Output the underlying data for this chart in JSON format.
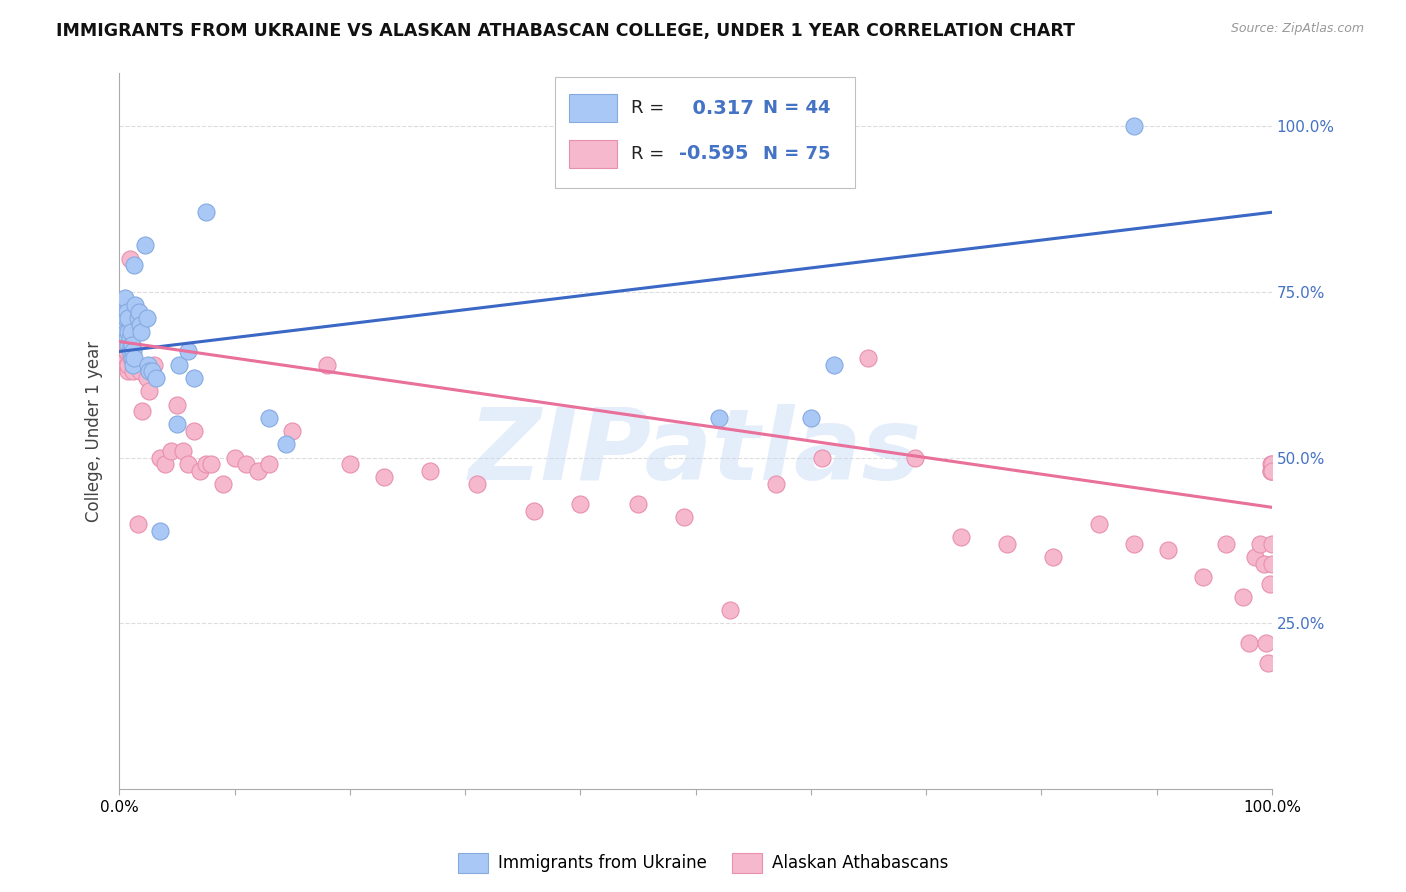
{
  "title": "IMMIGRANTS FROM UKRAINE VS ALASKAN ATHABASCAN COLLEGE, UNDER 1 YEAR CORRELATION CHART",
  "source": "Source: ZipAtlas.com",
  "ylabel": "College, Under 1 year",
  "xlim": [
    0,
    1
  ],
  "ylim": [
    0,
    1.08
  ],
  "y_tick_labels": [
    "25.0%",
    "50.0%",
    "75.0%",
    "100.0%"
  ],
  "y_tick_positions": [
    0.25,
    0.5,
    0.75,
    1.0
  ],
  "ukraine_color": "#aac8f5",
  "ukraine_edge": "#85aae0",
  "ukraine_line_color": "#3a68c4",
  "athabascan_color": "#f5b8cc",
  "athabascan_edge": "#e890b0",
  "athabascan_line_color": "#e8709a",
  "legend_R_ukraine": "0.317",
  "legend_N_ukraine": "44",
  "legend_R_athabascan": "-0.595",
  "legend_N_athabascan": "75",
  "ukraine_scatter_x": [
    0.004,
    0.005,
    0.005,
    0.005,
    0.006,
    0.006,
    0.007,
    0.007,
    0.008,
    0.008,
    0.008,
    0.009,
    0.009,
    0.01,
    0.01,
    0.011,
    0.011,
    0.012,
    0.012,
    0.013,
    0.013,
    0.014,
    0.016,
    0.017,
    0.018,
    0.019,
    0.022,
    0.024,
    0.025,
    0.026,
    0.028,
    0.032,
    0.035,
    0.05,
    0.052,
    0.06,
    0.065,
    0.075,
    0.13,
    0.145,
    0.52,
    0.6,
    0.62,
    0.88
  ],
  "ukraine_scatter_y": [
    0.73,
    0.7,
    0.72,
    0.74,
    0.69,
    0.71,
    0.68,
    0.72,
    0.67,
    0.69,
    0.71,
    0.66,
    0.68,
    0.67,
    0.69,
    0.65,
    0.67,
    0.64,
    0.66,
    0.65,
    0.79,
    0.73,
    0.71,
    0.72,
    0.7,
    0.69,
    0.82,
    0.71,
    0.64,
    0.63,
    0.63,
    0.62,
    0.39,
    0.55,
    0.64,
    0.66,
    0.62,
    0.87,
    0.56,
    0.52,
    0.56,
    0.56,
    0.64,
    1.0
  ],
  "athabascan_scatter_x": [
    0.003,
    0.004,
    0.005,
    0.005,
    0.006,
    0.006,
    0.007,
    0.007,
    0.008,
    0.008,
    0.009,
    0.01,
    0.01,
    0.011,
    0.012,
    0.014,
    0.016,
    0.018,
    0.02,
    0.024,
    0.026,
    0.03,
    0.035,
    0.04,
    0.045,
    0.05,
    0.055,
    0.06,
    0.065,
    0.07,
    0.075,
    0.08,
    0.09,
    0.1,
    0.11,
    0.12,
    0.13,
    0.15,
    0.18,
    0.2,
    0.23,
    0.27,
    0.31,
    0.36,
    0.4,
    0.45,
    0.49,
    0.53,
    0.57,
    0.61,
    0.65,
    0.69,
    0.73,
    0.77,
    0.81,
    0.85,
    0.88,
    0.91,
    0.94,
    0.96,
    0.975,
    0.98,
    0.985,
    0.99,
    0.993,
    0.995,
    0.997,
    0.998,
    0.999,
    0.9993,
    0.9995,
    0.9997,
    0.9998,
    0.9999,
    0.99995
  ],
  "athabascan_scatter_y": [
    0.68,
    0.7,
    0.66,
    0.68,
    0.65,
    0.66,
    0.64,
    0.66,
    0.63,
    0.64,
    0.8,
    0.67,
    0.65,
    0.67,
    0.63,
    0.64,
    0.4,
    0.63,
    0.57,
    0.62,
    0.6,
    0.64,
    0.5,
    0.49,
    0.51,
    0.58,
    0.51,
    0.49,
    0.54,
    0.48,
    0.49,
    0.49,
    0.46,
    0.5,
    0.49,
    0.48,
    0.49,
    0.54,
    0.64,
    0.49,
    0.47,
    0.48,
    0.46,
    0.42,
    0.43,
    0.43,
    0.41,
    0.27,
    0.46,
    0.5,
    0.65,
    0.5,
    0.38,
    0.37,
    0.35,
    0.4,
    0.37,
    0.36,
    0.32,
    0.37,
    0.29,
    0.22,
    0.35,
    0.37,
    0.34,
    0.22,
    0.19,
    0.31,
    0.49,
    0.48,
    0.48,
    0.37,
    0.34,
    0.49,
    0.48
  ],
  "ukraine_trend_x": [
    0.0,
    1.0
  ],
  "ukraine_trend_y": [
    0.66,
    0.87
  ],
  "athabascan_trend_x": [
    0.0,
    1.0
  ],
  "athabascan_trend_y": [
    0.675,
    0.425
  ],
  "watermark": "ZIPatlas",
  "background_color": "#ffffff",
  "grid_color": "#dddddd",
  "right_label_color": "#4472c4"
}
